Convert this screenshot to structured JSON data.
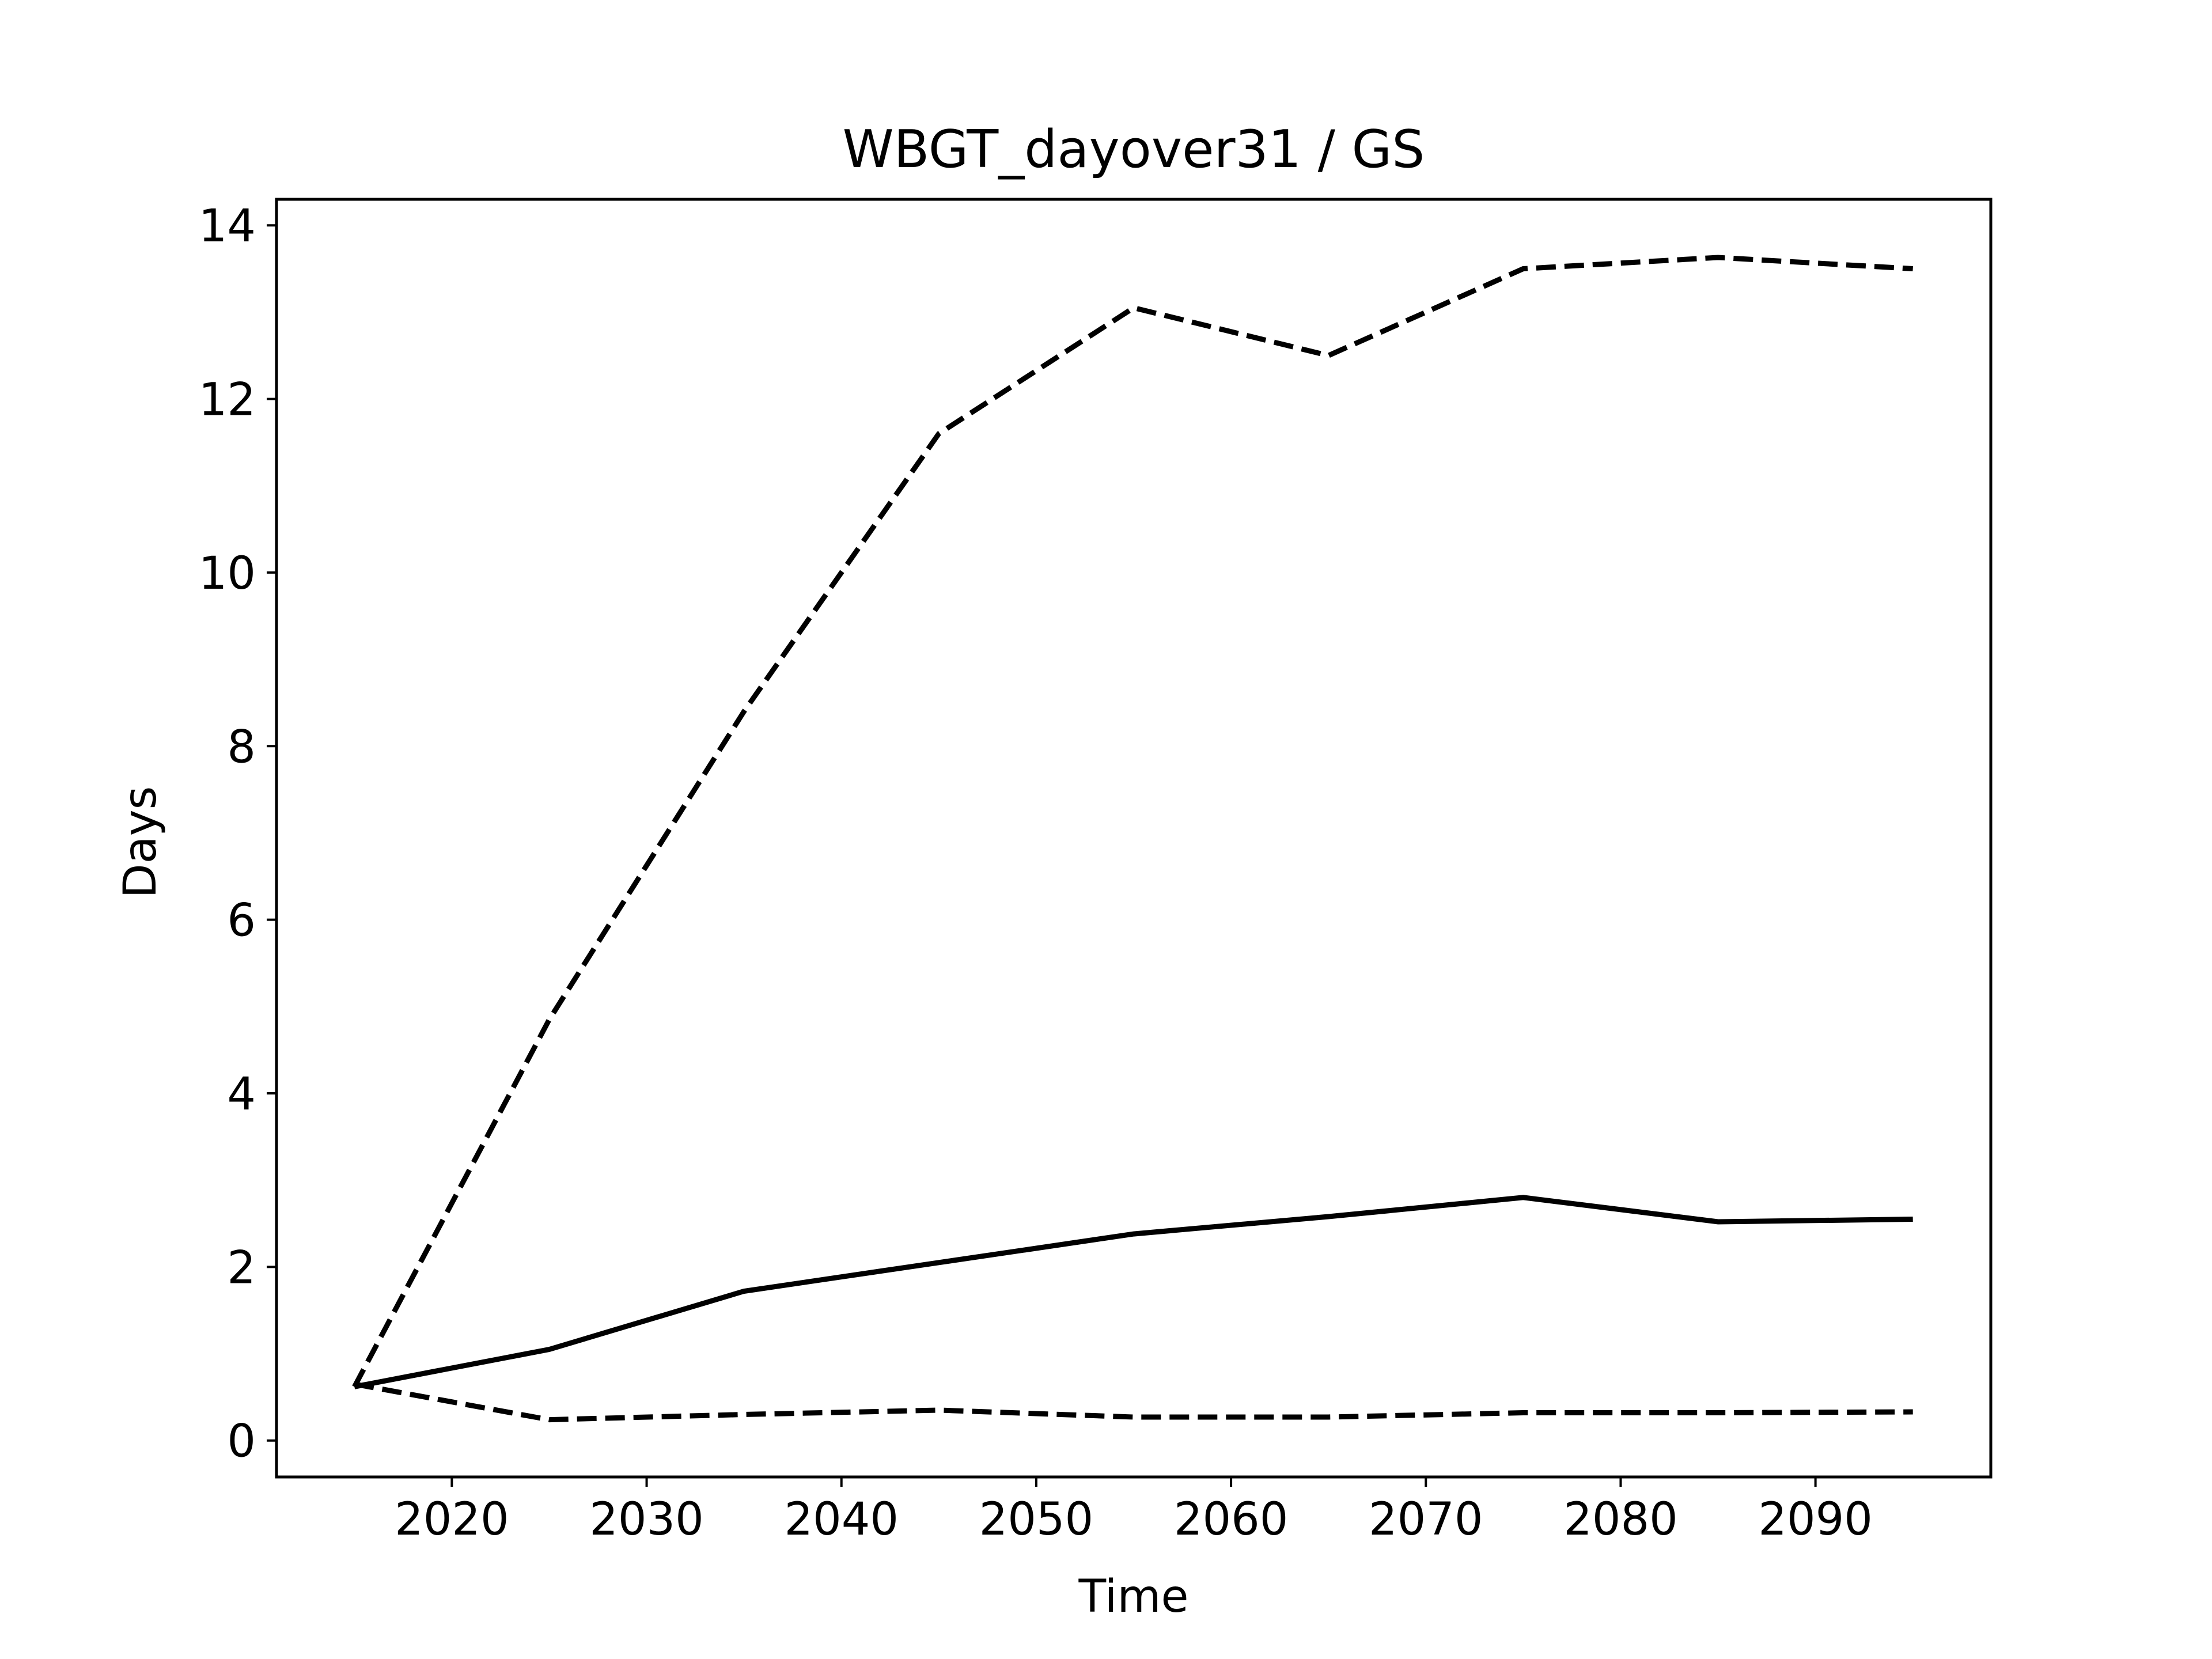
{
  "chart_data": {
    "type": "line",
    "title": "WBGT_dayover31 / GS",
    "xlabel": "Time",
    "ylabel": "Days",
    "xlim": [
      2011.0,
      2099.0
    ],
    "ylim": [
      -0.42,
      14.3
    ],
    "x_ticks": [
      2020,
      2030,
      2040,
      2050,
      2060,
      2070,
      2080,
      2090
    ],
    "y_ticks": [
      0,
      2,
      4,
      6,
      8,
      10,
      12,
      14
    ],
    "x_tick_labels": [
      "2020",
      "2030",
      "2040",
      "2050",
      "2060",
      "2070",
      "2080",
      "2090"
    ],
    "y_tick_labels": [
      "0",
      "2",
      "4",
      "6",
      "8",
      "10",
      "12",
      "14"
    ],
    "grid": false,
    "legend": false,
    "x": [
      2015,
      2025,
      2035,
      2045,
      2055,
      2065,
      2075,
      2085,
      2095
    ],
    "series": [
      {
        "style": "dashed",
        "color": "#000000",
        "values": [
          0.62,
          4.85,
          8.4,
          11.6,
          13.05,
          12.5,
          13.5,
          13.63,
          13.5
        ]
      },
      {
        "style": "solid",
        "color": "#000000",
        "values": [
          0.62,
          1.05,
          1.72,
          2.05,
          2.38,
          2.58,
          2.8,
          2.52,
          2.55
        ]
      },
      {
        "style": "dashed",
        "color": "#000000",
        "values": [
          0.65,
          0.24,
          0.3,
          0.35,
          0.27,
          0.27,
          0.32,
          0.32,
          0.33
        ]
      }
    ]
  }
}
